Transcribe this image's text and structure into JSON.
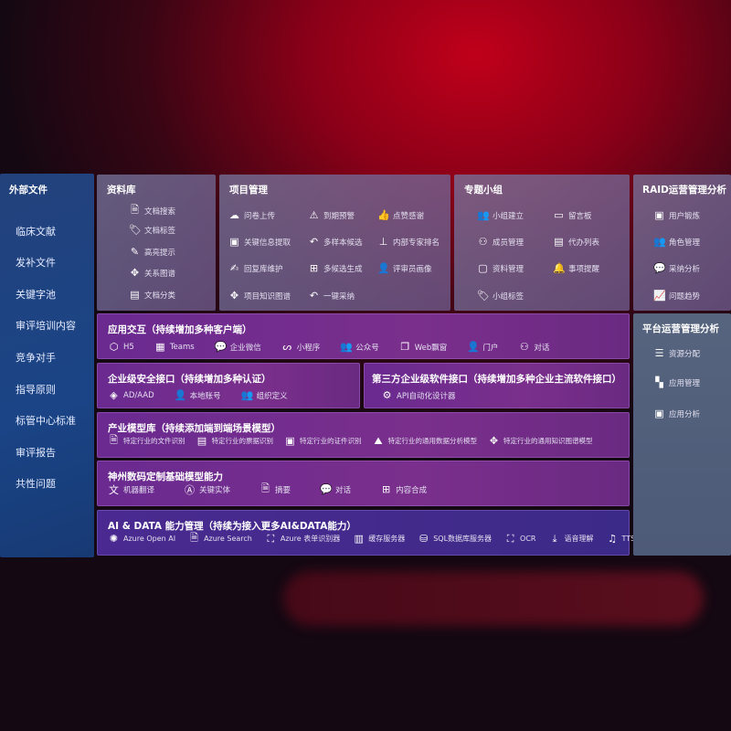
{
  "sidebar": {
    "title": "外部文件",
    "items": [
      "临床文献",
      "发补文件",
      "关键字池",
      "审评培训内容",
      "竞争对手",
      "指导原则",
      "标管中心标准",
      "审评报告",
      "共性问题"
    ]
  },
  "library": {
    "title": "资料库",
    "items": [
      {
        "icon": "doc-search",
        "label": "文档搜索"
      },
      {
        "icon": "tag",
        "label": "文档标签"
      },
      {
        "icon": "pen",
        "label": "高亮提示"
      },
      {
        "icon": "graph",
        "label": "关系图谱"
      },
      {
        "icon": "doc-classify",
        "label": "文档分类"
      }
    ]
  },
  "project": {
    "title": "项目管理",
    "items": [
      {
        "icon": "cloud-upload",
        "label": "问卷上传"
      },
      {
        "icon": "alarm",
        "label": "到期预警"
      },
      {
        "icon": "thumbs-up",
        "label": "点赞感谢"
      },
      {
        "icon": "info-card",
        "label": "关键信息提取"
      },
      {
        "icon": "reply",
        "label": "多样本候选"
      },
      {
        "icon": "ranking",
        "label": "内部专家排名"
      },
      {
        "icon": "edit",
        "label": "回复库维护"
      },
      {
        "icon": "puzzle",
        "label": "多候选生成"
      },
      {
        "icon": "user",
        "label": "评审员画像"
      },
      {
        "icon": "graph",
        "label": "项目知识图谱"
      },
      {
        "icon": "reply",
        "label": "一键采纳"
      }
    ]
  },
  "group": {
    "title": "专题小组",
    "items": [
      {
        "icon": "users",
        "label": "小组建立"
      },
      {
        "icon": "bbs",
        "label": "留言板"
      },
      {
        "icon": "user-add",
        "label": "成员管理"
      },
      {
        "icon": "clipboard",
        "label": "代办列表"
      },
      {
        "icon": "folder",
        "label": "资料管理"
      },
      {
        "icon": "bell",
        "label": "事项提醒"
      },
      {
        "icon": "tag",
        "label": "小组标签"
      }
    ]
  },
  "raid": {
    "title": "RAID运营管理分析",
    "items": [
      {
        "icon": "id-card",
        "label": "用户锻炼"
      },
      {
        "icon": "users",
        "label": "角色管理"
      },
      {
        "icon": "qa",
        "label": "采纳分析"
      },
      {
        "icon": "trend",
        "label": "问题趋势"
      }
    ]
  },
  "platform": {
    "title": "平台运营管理分析",
    "items": [
      {
        "icon": "list",
        "label": "资源分配"
      },
      {
        "icon": "apps",
        "label": "应用管理"
      },
      {
        "icon": "chart",
        "label": "应用分析"
      }
    ]
  },
  "app": {
    "title": "应用交互（持续增加多种客户端）",
    "items": [
      "H5",
      "Teams",
      "企业微信",
      "小程序",
      "公众号",
      "Web飘窗",
      "门户",
      "对话"
    ]
  },
  "security": {
    "title": "企业级安全接口（持续增加多种认证）",
    "items": [
      "AD/AAD",
      "本地账号",
      "组织定义"
    ]
  },
  "thirdparty": {
    "title": "第三方企业级软件接口（持续增加多种企业主流软件接口）",
    "items": [
      "API自动化设计器"
    ]
  },
  "industry": {
    "title": "产业模型库（持续添加端到端场景模型）",
    "items": [
      "特定行业的文件识别",
      "特定行业的票据识别",
      "特定行业的证件识别",
      "特定行业的通用数据分析模型",
      "特定行业的通用知识图谱模型"
    ]
  },
  "base": {
    "title": "神州数码定制基础模型能力",
    "items": [
      "机器翻译",
      "关键实体",
      "摘要",
      "对话",
      "内容合成"
    ]
  },
  "ai": {
    "title": "AI & DATA 能力管理（持续为接入更多AI&DATA能力）",
    "items": [
      "Azure Open AI",
      "Azure Search",
      "Azure 表单识别器",
      "缓存服务器",
      "SQL数据库服务器",
      "OCR",
      "语音理解",
      "TTS"
    ]
  }
}
